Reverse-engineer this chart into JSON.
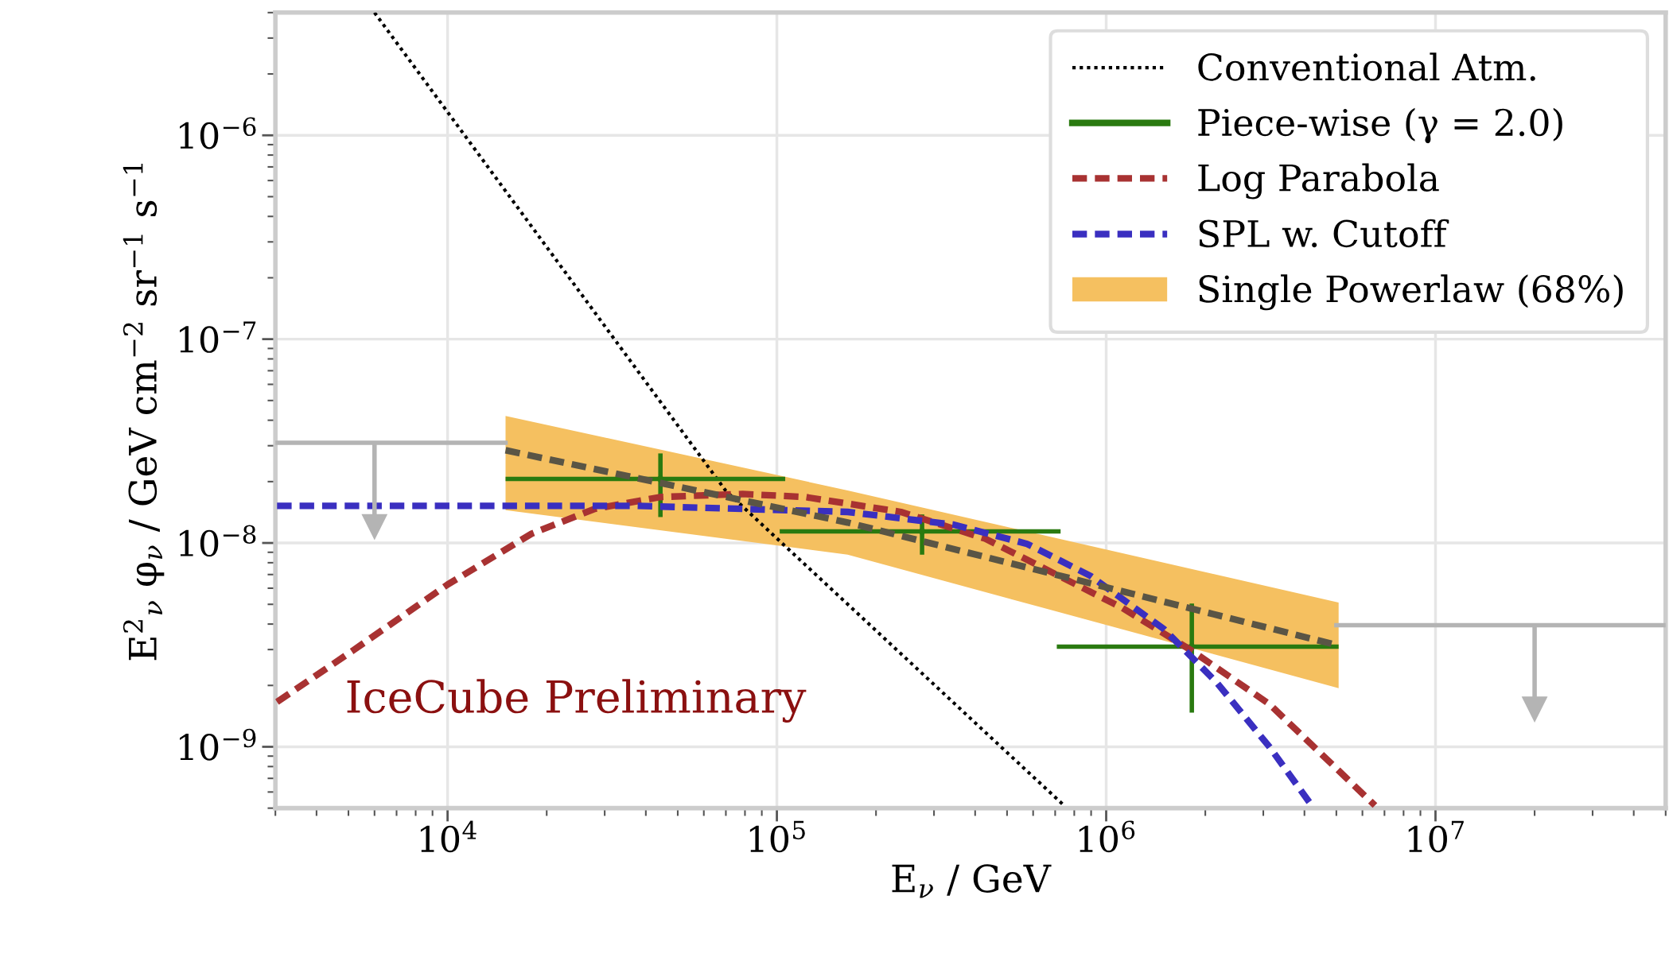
{
  "chart_data": {
    "type": "line",
    "xlabel": "E$_{ν}$ / GeV",
    "ylabel": "E$^{2}$$_{ν}$ φ$_{ν}$ / GeV cm$^{−2}$ sr$^{−1}$ s$^{−1}$",
    "log": "xy",
    "grid": true,
    "legend": "top right",
    "xlim": [
      3000,
      50000000
    ],
    "ylim": [
      5e-10,
      4e-06
    ],
    "xticks": [
      {
        "value": 10000,
        "label": "10$^{4}$"
      },
      {
        "value": 100000,
        "label": "10$^{5}$"
      },
      {
        "value": 1000000,
        "label": "10$^{6}$"
      },
      {
        "value": 10000000,
        "label": "10$^{7}$"
      }
    ],
    "yticks": [
      {
        "value": 1e-09,
        "label": "10$^{−9}$"
      },
      {
        "value": 1e-08,
        "label": "10$^{−8}$"
      },
      {
        "value": 1e-07,
        "label": "10$^{−7}$"
      },
      {
        "value": 1e-06,
        "label": "10$^{−6}$"
      }
    ],
    "annotations": [
      "IceCube Preliminary"
    ],
    "series": [
      {
        "name": "Conventional Atm.",
        "color": "#000000",
        "line_style": "dotted",
        "x": [
          6000,
          70000,
          750000
        ],
        "values": [
          4e-06,
          1.8e-08,
          5.1e-10
        ]
      },
      {
        "type": "scatter",
        "name": "Piece-wise (γ = 2.0)",
        "color": "#2a7a10",
        "x": [
          44300,
          276000,
          1820000
        ],
        "values": [
          2.06e-08,
          1.14e-08,
          3.1e-09
        ],
        "xerrors": [
          [
            15000,
            106000
          ],
          [
            102000,
            727000
          ],
          [
            708000,
            5080000
          ]
        ],
        "errors": [
          [
            1.34e-08,
            2.75e-08
          ],
          [
            8.76e-09,
            1.38e-08
          ],
          [
            1.47e-09,
            5.04e-09
          ]
        ]
      },
      {
        "name": "Log Parabola",
        "color": "#a83232",
        "line_style": "dashed",
        "x": [
          3035,
          5150,
          10000,
          18000,
          28000,
          44300,
          78700,
          122000,
          238000,
          429000,
          718000,
          1120000,
          1820000,
          3130000,
          6550000
        ],
        "values": [
          1.66e-09,
          2.96e-09,
          6.25e-09,
          1.11e-08,
          1.47e-08,
          1.68e-08,
          1.74e-08,
          1.68e-08,
          1.42e-08,
          1.05e-08,
          6.9e-09,
          4.8e-09,
          2.96e-09,
          1.62e-09,
          5.15e-10
        ]
      },
      {
        "name": "SPL w. Cutoff",
        "color": "#3a2fc0",
        "line_style": "dashed",
        "x": [
          3035,
          37700,
          164000,
          344000,
          575000,
          895000,
          1500000,
          2170000,
          3130000,
          4210000
        ],
        "values": [
          1.52e-08,
          1.52e-08,
          1.42e-08,
          1.23e-08,
          9.9e-09,
          6.9e-09,
          3.77e-09,
          2.06e-09,
          1e-09,
          5.15e-10
        ]
      },
      {
        "color": "#b4b4b4",
        "line_style": "solid",
        "x": [
          3000,
          15000
        ],
        "values": [
          3.1e-08,
          3.1e-08
        ]
      },
      {
        "color": "#b4b4b4",
        "line_style": "solid",
        "x": [
          5000000,
          50000000
        ],
        "values": [
          3.95e-09,
          3.95e-09
        ]
      },
      {
        "type": "scatter",
        "color": "#b4b4b4",
        "marker": "triangle",
        "x": [
          6000,
          20000000
        ],
        "values": [
          1.2e-08,
          1.53e-09
        ],
        "errors": [
          [
            1.2e-08,
            3.1e-08
          ],
          [
            1.53e-09,
            3.95e-09
          ]
        ]
      },
      {
        "color": "#5a5545",
        "line_style": "dashed",
        "x": [
          15000,
          164000,
          5080000
        ],
        "values": [
          2.85e-08,
          1.26e-08,
          3.14e-09
        ]
      },
      {
        "type": "line",
        "name": "Single Powerlaw (68%)",
        "color": "#f5c060",
        "x": [
          15000,
          164000,
          5080000
        ],
        "values": [
          null,
          null,
          null
        ],
        "lower": [
          1.45e-08,
          8.76e-09,
          1.94e-09
        ],
        "upper": [
          4.2e-08,
          1.81e-08,
          5.1e-09
        ]
      }
    ]
  }
}
